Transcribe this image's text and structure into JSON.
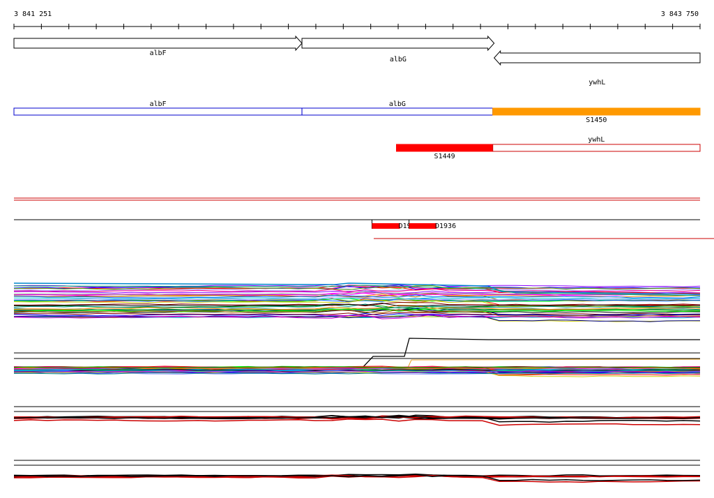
{
  "axis": {
    "start": "3 841 251",
    "end": "3 843 750",
    "start_bp": 3841251,
    "end_bp": 3843750
  },
  "genes": [
    {
      "name": "albF",
      "start_bp": 3841251,
      "end_bp": 3842300,
      "strand": "+"
    },
    {
      "name": "albG",
      "start_bp": 3842300,
      "end_bp": 3843000,
      "strand": "+"
    },
    {
      "name": "ywhL",
      "start_bp": 3843000,
      "end_bp": 3843750,
      "strand": "-"
    }
  ],
  "annotation_track": {
    "segments": [
      {
        "name": "albF",
        "start_bp": 3841251,
        "end_bp": 3842300,
        "color": "#0000cc",
        "filled": false
      },
      {
        "name": "albG",
        "start_bp": 3842300,
        "end_bp": 3842995,
        "color": "#0000cc",
        "filled": false
      },
      {
        "name": "S1450",
        "start_bp": 3842995,
        "end_bp": 3843750,
        "color": "#ff9900",
        "filled": true
      }
    ]
  },
  "second_track": {
    "segments": [
      {
        "name": "S1449",
        "start_bp": 3842644,
        "end_bp": 3842995,
        "color": "#ff0000",
        "filled": true
      },
      {
        "name": "ywhL",
        "start_bp": 3842995,
        "end_bp": 3843750,
        "color": "#cc0000",
        "filled": false
      }
    ]
  },
  "features": [
    {
      "name": "D19",
      "start_bp": 3842555,
      "end_bp": 3842657,
      "color": "#ff0000"
    },
    {
      "name": "D1936",
      "start_bp": 3842690,
      "end_bp": 3842790,
      "color": "#ff0000"
    }
  ],
  "colors": {
    "line_red": "#cc0000",
    "outline_blue": "#0000cc",
    "orange": "#ff9900",
    "red": "#ff0000"
  }
}
